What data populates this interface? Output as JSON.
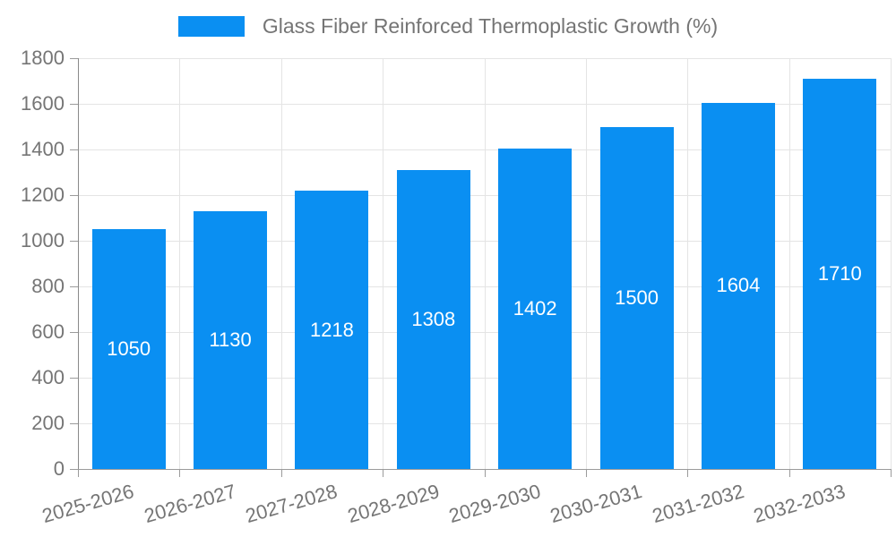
{
  "legend": {
    "label": "Glass Fiber Reinforced Thermoplastic Growth (%)"
  },
  "colors": {
    "bar": "#0a8ff2",
    "grid": "#e4e4e4",
    "x_axis_line": "#9b9b9b",
    "y_axis_line": "#8a8a8a",
    "tick_mark": "#9b9b9b",
    "tick_text": "#757575",
    "bar_label_text": "#ffffff",
    "background": "#ffffff"
  },
  "chart_data": {
    "type": "bar",
    "title": "Glass Fiber Reinforced Thermoplastic Growth (%)",
    "categories": [
      "2025-2026",
      "2026-2027",
      "2027-2028",
      "2028-2029",
      "2029-2030",
      "2030-2031",
      "2031-2032",
      "2032-2033"
    ],
    "values": [
      1050,
      1130,
      1218,
      1308,
      1402,
      1500,
      1604,
      1710
    ],
    "series": [
      {
        "name": "Glass Fiber Reinforced Thermoplastic Growth (%)",
        "values": [
          1050,
          1130,
          1218,
          1308,
          1402,
          1500,
          1604,
          1710
        ]
      }
    ],
    "data_labels_shown": true,
    "data_label_position": "middle-of-bar",
    "xlabel": "",
    "ylabel": "",
    "ylim": [
      0,
      1800
    ],
    "yticks": [
      0,
      200,
      400,
      600,
      800,
      1000,
      1200,
      1400,
      1600,
      1800
    ],
    "grid": true,
    "legend_position": "top-center",
    "x_label_rotation_deg": -16
  }
}
